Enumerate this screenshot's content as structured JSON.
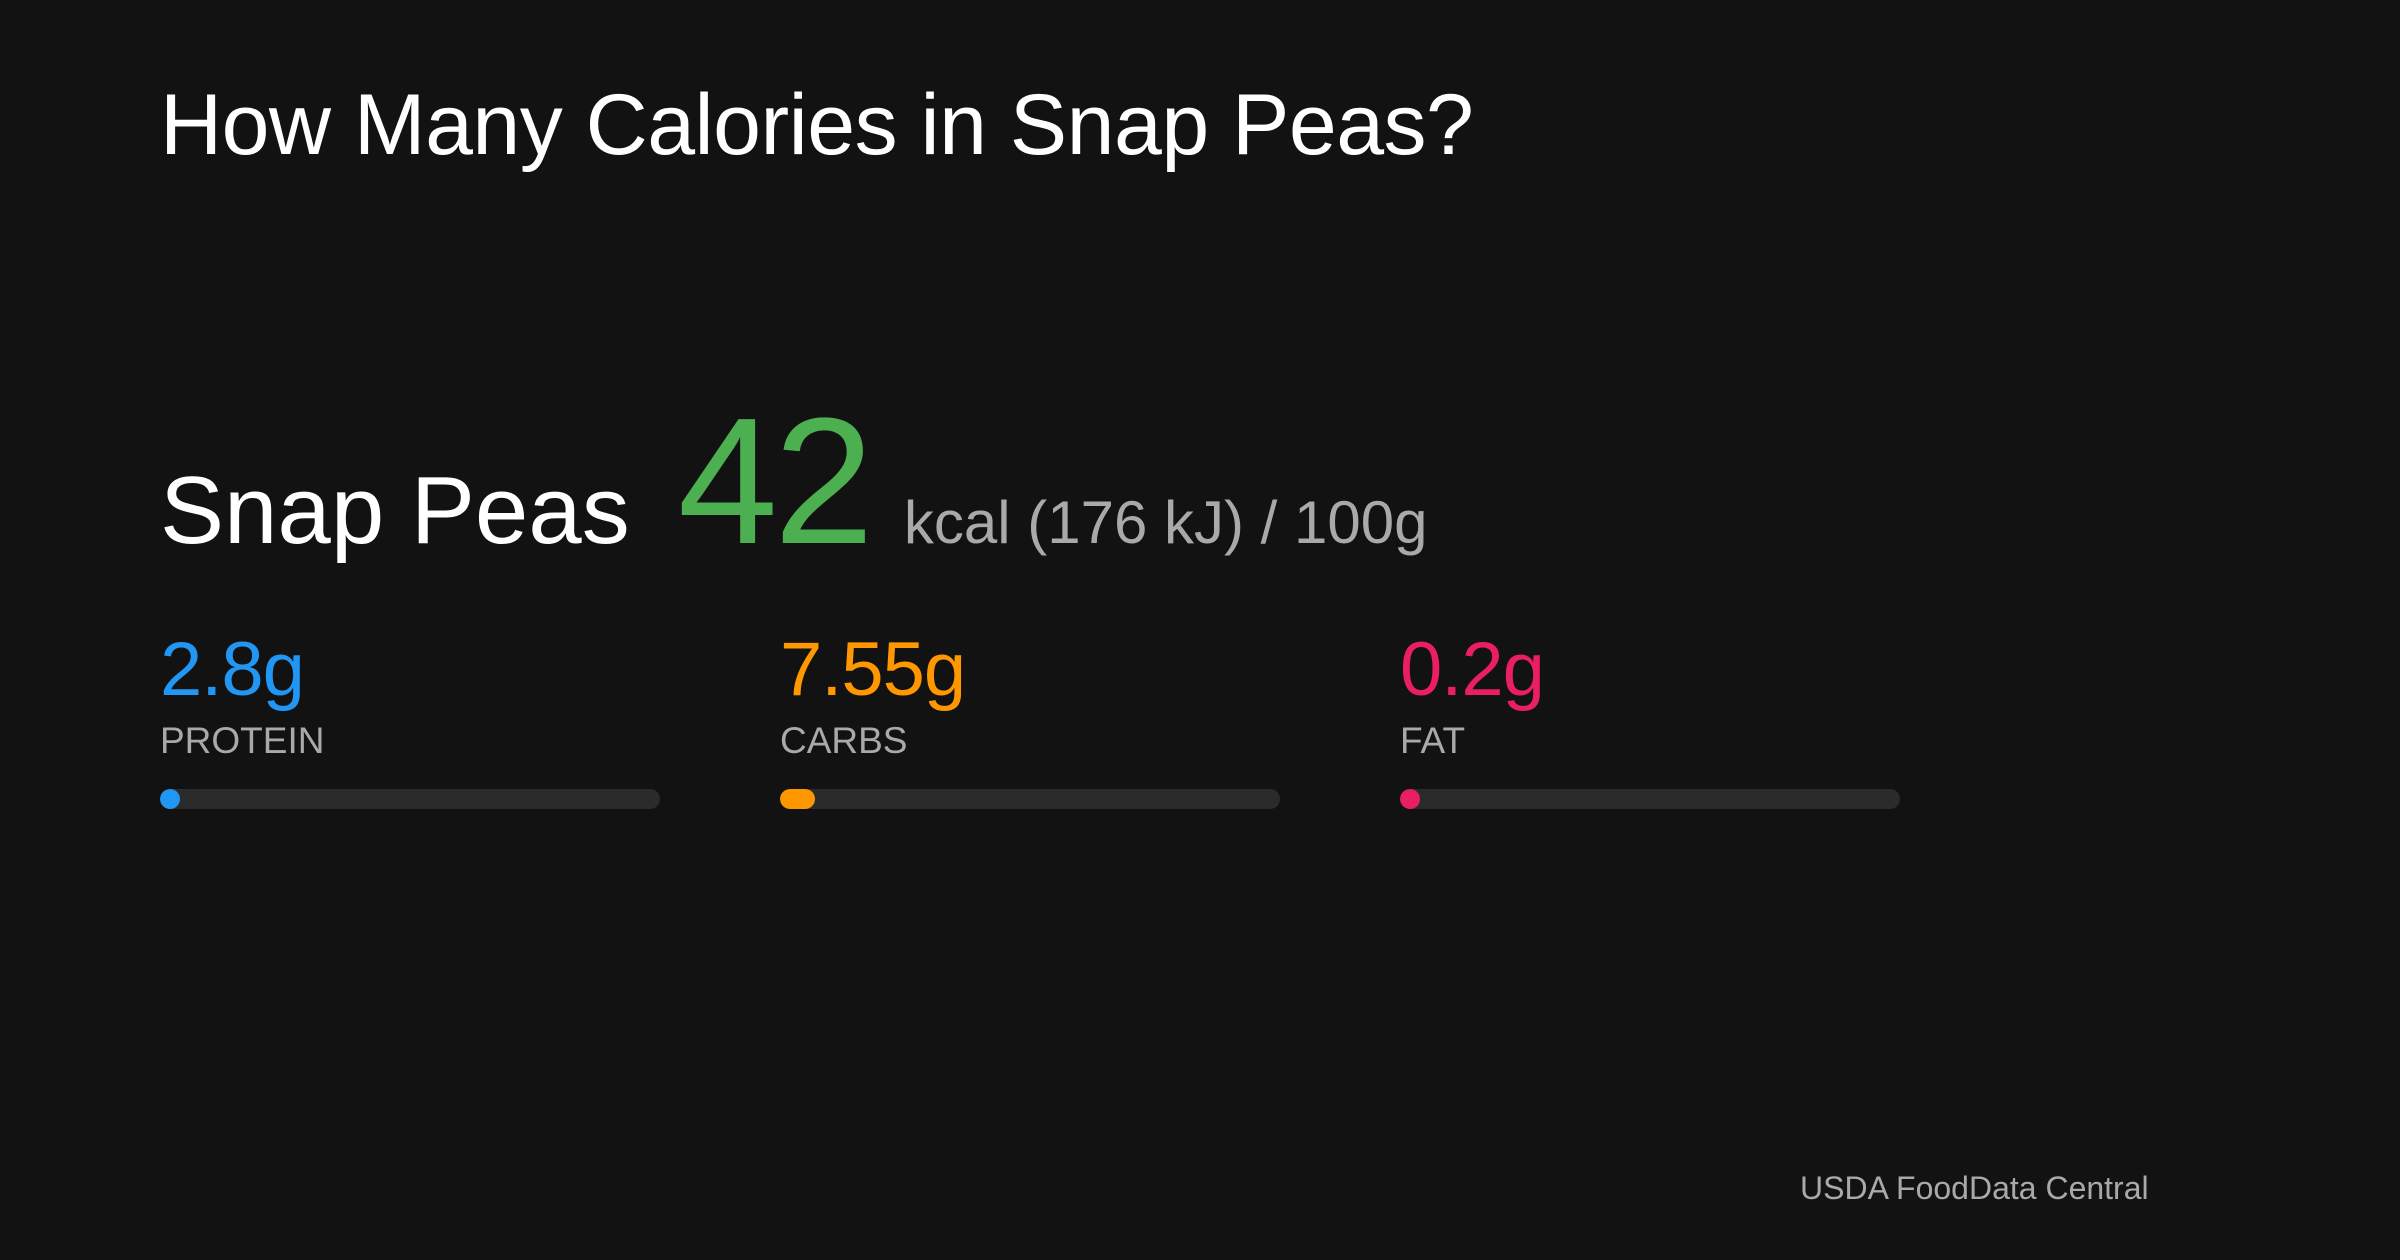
{
  "title": "How Many Calories in Snap Peas?",
  "food": {
    "name": "Snap Peas",
    "kcal": "42",
    "kcal_unit": "kcal (176 kJ) / 100g",
    "kcal_color": "#4caf50"
  },
  "macros": [
    {
      "key": "protein",
      "value": "2.8g",
      "label": "PROTEIN",
      "color": "#2196f3",
      "fill_fraction": 0.04
    },
    {
      "key": "carbs",
      "value": "7.55g",
      "label": "CARBS",
      "color": "#ff9800",
      "fill_fraction": 0.07
    },
    {
      "key": "fat",
      "value": "0.2g",
      "label": "FAT",
      "color": "#e91e63",
      "fill_fraction": 0.04
    }
  ],
  "source": "USDA FoodData Central"
}
